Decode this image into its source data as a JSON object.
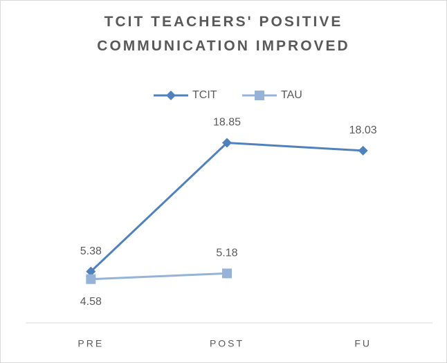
{
  "chart_data": {
    "type": "line",
    "title": "TCIT TEACHERS' POSITIVE COMMUNICATION IMPROVED",
    "categories": [
      "PRE",
      "POST",
      "FU"
    ],
    "series": [
      {
        "name": "TCIT",
        "color": "#4f81bd",
        "marker": "diamond",
        "values": [
          5.38,
          18.85,
          18.03
        ]
      },
      {
        "name": "TAU",
        "color": "#95b3d7",
        "marker": "square",
        "values": [
          4.58,
          5.18,
          null
        ]
      }
    ],
    "ylim": [
      0,
      22
    ],
    "legend": "top"
  }
}
